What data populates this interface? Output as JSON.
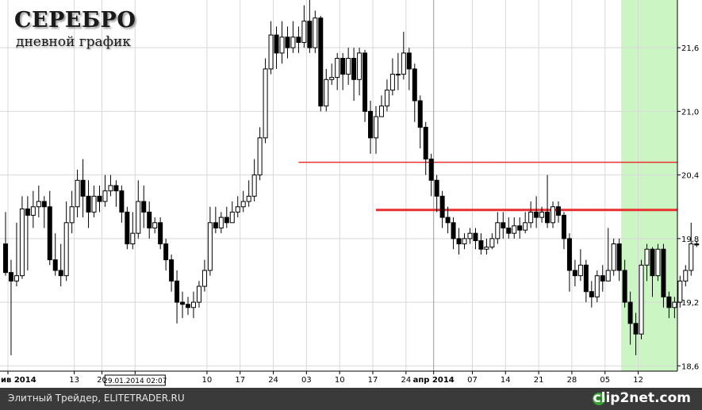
{
  "title": "СЕРЕБРО",
  "subtitle": "дневной график",
  "footer": {
    "text": "Элитный Трейдер, ELITETRADER.RU",
    "brand": "clip2net.com",
    "icon": "clip2net-logo-icon"
  },
  "colors": {
    "up": "#ffffff",
    "down": "#000000",
    "level": "#e83030",
    "highlight": "#ccf5c4",
    "grid": "#d8d8d8"
  },
  "chart_data": {
    "type": "candlestick",
    "title": "СЕРЕБРО",
    "subtitle": "дневной график",
    "ylim": [
      18.55,
      22.05
    ],
    "y_ticks": [
      "21,6",
      "21,0",
      "20,4",
      "19,8",
      "19,2",
      "18,6"
    ],
    "y_tick_values": [
      21.6,
      21.0,
      20.4,
      19.8,
      19.2,
      18.6
    ],
    "x_ticks": [
      "ив 2014",
      "13",
      "20",
      "29.01.2014 02:07",
      "10",
      "17",
      "24",
      "03",
      "10",
      "17",
      "24",
      "апр 2014",
      "07",
      "14",
      "21",
      "28",
      "05",
      "12"
    ],
    "cursor_label": "29.01.2014 02:07",
    "grid": true,
    "levels": [
      {
        "price": 20.52,
        "from_index": 53,
        "to_index": 118
      },
      {
        "price": 20.07,
        "from_index": 67,
        "to_index": 118,
        "thick": true
      }
    ],
    "highlight_from_index": 112,
    "candles": [
      [
        19.75,
        19.48,
        20.05,
        19.45
      ],
      [
        19.48,
        19.4,
        19.6,
        18.7
      ],
      [
        19.4,
        19.45,
        19.95,
        19.35
      ],
      [
        19.45,
        20.08,
        20.2,
        19.42
      ],
      [
        20.08,
        20.02,
        20.2,
        19.5
      ],
      [
        20.02,
        20.1,
        20.25,
        19.9
      ],
      [
        20.1,
        20.15,
        20.3,
        20.0
      ],
      [
        20.15,
        20.1,
        20.2,
        19.9
      ],
      [
        20.1,
        19.6,
        20.25,
        19.55
      ],
      [
        19.6,
        19.5,
        19.85,
        19.45
      ],
      [
        19.5,
        19.45,
        19.75,
        19.35
      ],
      [
        19.45,
        19.95,
        20.15,
        19.4
      ],
      [
        19.95,
        20.1,
        20.25,
        19.85
      ],
      [
        20.1,
        20.35,
        20.45,
        20.0
      ],
      [
        20.35,
        20.2,
        20.55,
        20.0
      ],
      [
        20.2,
        20.05,
        20.35,
        19.9
      ],
      [
        20.05,
        20.2,
        20.3,
        20.0
      ],
      [
        20.2,
        20.15,
        20.3,
        20.05
      ],
      [
        20.15,
        20.25,
        20.4,
        20.1
      ],
      [
        20.25,
        20.3,
        20.4,
        20.2
      ],
      [
        20.3,
        20.25,
        20.35,
        20.1
      ],
      [
        20.25,
        20.05,
        20.3,
        19.95
      ],
      [
        20.05,
        19.75,
        20.1,
        19.7
      ],
      [
        19.75,
        19.85,
        20.05,
        19.7
      ],
      [
        19.85,
        20.15,
        20.35,
        19.8
      ],
      [
        20.15,
        20.05,
        20.3,
        19.9
      ],
      [
        20.05,
        19.9,
        20.15,
        19.8
      ],
      [
        19.9,
        19.95,
        20.0,
        19.85
      ],
      [
        19.95,
        19.75,
        20.0,
        19.7
      ],
      [
        19.75,
        19.6,
        19.8,
        19.5
      ],
      [
        19.6,
        19.4,
        19.65,
        19.3
      ],
      [
        19.4,
        19.2,
        19.5,
        19.0
      ],
      [
        19.2,
        19.18,
        19.3,
        19.05
      ],
      [
        19.18,
        19.15,
        19.25,
        19.08
      ],
      [
        19.15,
        19.2,
        19.3,
        19.05
      ],
      [
        19.2,
        19.35,
        19.4,
        19.15
      ],
      [
        19.35,
        19.5,
        19.6,
        19.3
      ],
      [
        19.5,
        19.95,
        20.1,
        19.45
      ],
      [
        19.95,
        19.9,
        20.1,
        19.85
      ],
      [
        19.9,
        20.0,
        20.05,
        19.85
      ],
      [
        20.0,
        19.95,
        20.1,
        19.9
      ],
      [
        19.95,
        20.05,
        20.15,
        19.95
      ],
      [
        20.05,
        20.1,
        20.2,
        20.0
      ],
      [
        20.1,
        20.15,
        20.25,
        20.05
      ],
      [
        20.15,
        20.2,
        20.35,
        20.1
      ],
      [
        20.2,
        20.4,
        20.55,
        20.15
      ],
      [
        20.4,
        20.75,
        20.85,
        20.35
      ],
      [
        20.75,
        21.4,
        21.5,
        20.7
      ],
      [
        21.4,
        21.72,
        21.85,
        21.35
      ],
      [
        21.72,
        21.55,
        21.8,
        21.4
      ],
      [
        21.55,
        21.7,
        21.85,
        21.45
      ],
      [
        21.7,
        21.6,
        21.8,
        21.5
      ],
      [
        21.6,
        21.7,
        21.85,
        21.55
      ],
      [
        21.7,
        21.65,
        21.8,
        21.55
      ],
      [
        21.65,
        21.85,
        22.0,
        21.6
      ],
      [
        21.85,
        21.6,
        22.05,
        21.55
      ],
      [
        21.6,
        21.88,
        21.95,
        21.55
      ],
      [
        21.88,
        21.05,
        21.9,
        21.0
      ],
      [
        21.05,
        21.3,
        21.4,
        21.0
      ],
      [
        21.3,
        21.32,
        21.45,
        21.25
      ],
      [
        21.32,
        21.5,
        21.55,
        21.2
      ],
      [
        21.5,
        21.35,
        21.55,
        21.2
      ],
      [
        21.35,
        21.5,
        21.6,
        21.25
      ],
      [
        21.5,
        21.3,
        21.6,
        21.1
      ],
      [
        21.3,
        21.55,
        21.6,
        21.15
      ],
      [
        21.55,
        21.0,
        21.58,
        20.9
      ],
      [
        21.0,
        20.75,
        21.1,
        20.6
      ],
      [
        20.75,
        20.95,
        21.05,
        20.6
      ],
      [
        20.95,
        21.05,
        21.15,
        20.95
      ],
      [
        21.05,
        21.2,
        21.3,
        21.0
      ],
      [
        21.2,
        21.35,
        21.5,
        21.15
      ],
      [
        21.35,
        21.35,
        21.55,
        21.2
      ],
      [
        21.35,
        21.55,
        21.75,
        21.3
      ],
      [
        21.55,
        21.4,
        21.6,
        21.2
      ],
      [
        21.4,
        21.1,
        21.45,
        20.9
      ],
      [
        21.1,
        20.85,
        21.15,
        20.65
      ],
      [
        20.85,
        20.55,
        20.9,
        20.4
      ],
      [
        20.55,
        20.35,
        20.6,
        20.2
      ],
      [
        20.35,
        20.2,
        20.4,
        20.05
      ],
      [
        20.2,
        20.0,
        20.25,
        19.9
      ],
      [
        20.0,
        19.95,
        20.1,
        19.85
      ],
      [
        19.95,
        19.8,
        20.0,
        19.7
      ],
      [
        19.8,
        19.75,
        19.9,
        19.65
      ],
      [
        19.75,
        19.8,
        19.85,
        19.7
      ],
      [
        19.8,
        19.85,
        19.9,
        19.75
      ],
      [
        19.85,
        19.78,
        19.9,
        19.7
      ],
      [
        19.78,
        19.7,
        19.85,
        19.65
      ],
      [
        19.7,
        19.72,
        19.8,
        19.65
      ],
      [
        19.72,
        19.8,
        19.85,
        19.7
      ],
      [
        19.8,
        19.95,
        20.05,
        19.75
      ],
      [
        19.95,
        19.9,
        20.05,
        19.8
      ],
      [
        19.9,
        19.85,
        20.0,
        19.8
      ],
      [
        19.85,
        19.92,
        20.0,
        19.8
      ],
      [
        19.92,
        19.88,
        20.0,
        19.8
      ],
      [
        19.88,
        19.95,
        20.05,
        19.85
      ],
      [
        19.95,
        20.05,
        20.15,
        19.9
      ],
      [
        20.05,
        20.0,
        20.2,
        19.9
      ],
      [
        20.0,
        20.05,
        20.1,
        19.95
      ],
      [
        20.05,
        19.95,
        20.4,
        19.9
      ],
      [
        19.95,
        20.1,
        20.15,
        19.9
      ],
      [
        20.1,
        20.02,
        20.15,
        19.95
      ],
      [
        20.02,
        19.8,
        20.05,
        19.7
      ],
      [
        19.8,
        19.5,
        19.85,
        19.3
      ],
      [
        19.5,
        19.45,
        19.6,
        19.35
      ],
      [
        19.45,
        19.55,
        19.7,
        19.4
      ],
      [
        19.55,
        19.3,
        19.6,
        19.2
      ],
      [
        19.3,
        19.25,
        19.4,
        19.15
      ],
      [
        19.25,
        19.45,
        19.5,
        19.2
      ],
      [
        19.45,
        19.4,
        19.55,
        19.3
      ],
      [
        19.4,
        19.5,
        19.9,
        19.4
      ],
      [
        19.5,
        19.75,
        19.8,
        19.45
      ],
      [
        19.75,
        19.5,
        19.8,
        19.4
      ],
      [
        19.5,
        19.2,
        19.6,
        19.15
      ],
      [
        19.2,
        19.0,
        19.3,
        18.8
      ],
      [
        19.0,
        18.9,
        19.1,
        18.7
      ],
      [
        18.9,
        19.55,
        19.6,
        18.85
      ],
      [
        19.55,
        19.7,
        19.75,
        19.4
      ],
      [
        19.7,
        19.45,
        19.72,
        19.25
      ],
      [
        19.45,
        19.7,
        19.75,
        19.4
      ],
      [
        19.7,
        19.25,
        19.75,
        19.15
      ],
      [
        19.25,
        19.15,
        19.3,
        19.05
      ],
      [
        19.15,
        19.2,
        19.25,
        19.05
      ],
      [
        19.2,
        19.4,
        19.45,
        19.15
      ],
      [
        19.4,
        19.5,
        19.55,
        19.35
      ],
      [
        19.5,
        19.75,
        19.95,
        19.45
      ],
      [
        19.75,
        19.74,
        19.78,
        19.72
      ]
    ]
  }
}
